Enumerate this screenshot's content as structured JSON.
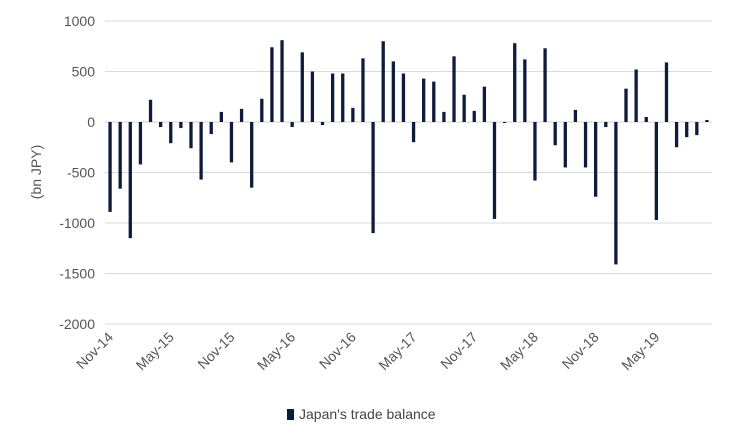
{
  "chart_data": {
    "type": "bar",
    "title": "",
    "xlabel": "",
    "ylabel": "(bn JPY)",
    "ylim": [
      -2000,
      1000
    ],
    "yticks": [
      1000,
      500,
      0,
      -500,
      -1000,
      -1500,
      -2000
    ],
    "xtick_labels": [
      "Nov-14",
      "May-15",
      "Nov-15",
      "May-16",
      "Nov-16",
      "May-17",
      "Nov-17",
      "May-18",
      "Nov-18",
      "May-19"
    ],
    "grid": true,
    "legend_position": "bottom",
    "colors": {
      "bar": "#0f1b3d",
      "grid": "#d9d9d9",
      "text": "#555555"
    },
    "categories": [
      "Nov-14",
      "Dec-14",
      "Jan-15",
      "Feb-15",
      "Mar-15",
      "Apr-15",
      "May-15",
      "Jun-15",
      "Jul-15",
      "Aug-15",
      "Sep-15",
      "Oct-15",
      "Nov-15",
      "Dec-15",
      "Jan-16",
      "Feb-16",
      "Mar-16",
      "Apr-16",
      "May-16",
      "Jun-16",
      "Jul-16",
      "Aug-16",
      "Sep-16",
      "Oct-16",
      "Nov-16",
      "Dec-16",
      "Jan-17",
      "Feb-17",
      "Mar-17",
      "Apr-17",
      "May-17",
      "Jun-17",
      "Jul-17",
      "Aug-17",
      "Sep-17",
      "Oct-17",
      "Nov-17",
      "Dec-17",
      "Jan-18",
      "Feb-18",
      "Mar-18",
      "Apr-18",
      "May-18",
      "Jun-18",
      "Jul-18",
      "Aug-18",
      "Sep-18",
      "Oct-18",
      "Nov-18",
      "Dec-18",
      "Jan-19",
      "Feb-19",
      "Mar-19",
      "Apr-19",
      "May-19",
      "Jun-19",
      "Jul-19",
      "Aug-19",
      "Sep-19",
      "Oct-19"
    ],
    "series": [
      {
        "name": "Japan's trade balance",
        "values": [
          -890,
          -660,
          -1150,
          -420,
          220,
          -50,
          -210,
          -60,
          -260,
          -570,
          -120,
          100,
          -400,
          130,
          -650,
          230,
          740,
          810,
          -50,
          690,
          500,
          -30,
          480,
          480,
          140,
          630,
          -1100,
          800,
          600,
          480,
          -200,
          430,
          400,
          100,
          650,
          270,
          110,
          350,
          -960,
          -10,
          780,
          620,
          -580,
          730,
          -230,
          -450,
          120,
          -450,
          -740,
          -50,
          -1410,
          330,
          520,
          50,
          -970,
          590,
          -250,
          -150,
          -130,
          20
        ]
      }
    ]
  },
  "legend": {
    "label": "Japan's trade balance"
  }
}
